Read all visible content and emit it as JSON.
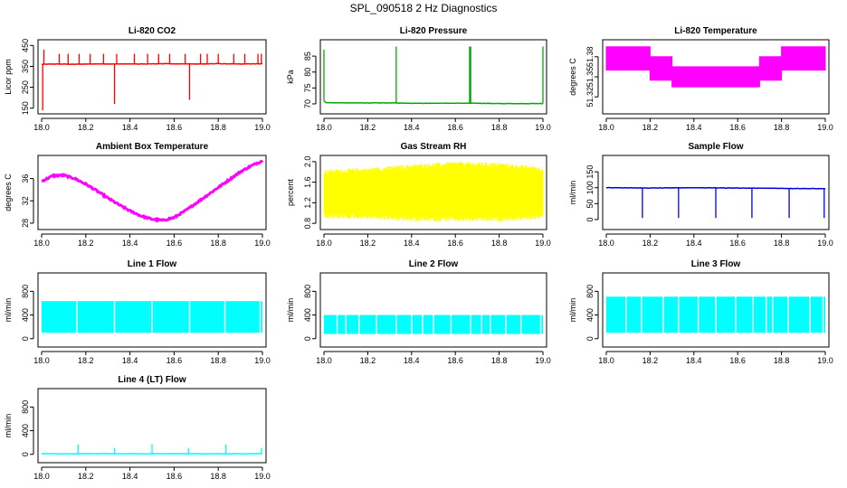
{
  "title": "SPL_090518  2 Hz Diagnostics",
  "chart_data": [
    {
      "type": "line",
      "title": "Li-820 CO2",
      "ylabel": "Licor ppm",
      "color": "#ff0000",
      "xlim": [
        18.0,
        19.0
      ],
      "ylim": [
        140,
        460
      ],
      "xticks": [
        "18.0",
        "18.2",
        "18.4",
        "18.6",
        "18.8",
        "19.0"
      ],
      "yticks": [
        "150",
        "250",
        "350",
        "450"
      ],
      "ytick_values": [
        150,
        250,
        350,
        450
      ],
      "pattern": "spiky",
      "series": [
        {
          "x": [
            18.0,
            18.01,
            18.05,
            18.1,
            18.15,
            18.2,
            18.25,
            18.3,
            18.33,
            18.35,
            18.4,
            18.45,
            18.5,
            18.55,
            18.6,
            18.65,
            18.67,
            18.7,
            18.75,
            18.8,
            18.85,
            18.9,
            18.95,
            19.0
          ],
          "values": [
            360,
            360,
            361,
            361,
            360,
            361,
            362,
            361,
            361,
            361,
            362,
            361,
            362,
            363,
            362,
            362,
            362,
            361,
            362,
            363,
            362,
            361,
            362,
            362
          ]
        }
      ],
      "spikes": [
        {
          "x": 18.005,
          "value": 140
        },
        {
          "x": 18.01,
          "value": 430
        },
        {
          "x": 18.08,
          "value": 410
        },
        {
          "x": 18.12,
          "value": 410
        },
        {
          "x": 18.17,
          "value": 410
        },
        {
          "x": 18.22,
          "value": 410
        },
        {
          "x": 18.28,
          "value": 410
        },
        {
          "x": 18.33,
          "value": 170
        },
        {
          "x": 18.34,
          "value": 410
        },
        {
          "x": 18.42,
          "value": 410
        },
        {
          "x": 18.48,
          "value": 410
        },
        {
          "x": 18.53,
          "value": 410
        },
        {
          "x": 18.58,
          "value": 410
        },
        {
          "x": 18.65,
          "value": 410
        },
        {
          "x": 18.67,
          "value": 190
        },
        {
          "x": 18.72,
          "value": 410
        },
        {
          "x": 18.75,
          "value": 410
        },
        {
          "x": 18.8,
          "value": 410
        },
        {
          "x": 18.87,
          "value": 410
        },
        {
          "x": 18.92,
          "value": 410
        },
        {
          "x": 18.98,
          "value": 410
        },
        {
          "x": 18.995,
          "value": 410
        }
      ]
    },
    {
      "type": "line",
      "title": "Li-820 Pressure",
      "ylabel": "kPa",
      "color": "#00aa00",
      "xlim": [
        18.0,
        19.0
      ],
      "ylim": [
        68,
        89
      ],
      "xticks": [
        "18.0",
        "18.2",
        "18.4",
        "18.6",
        "18.8",
        "19.0"
      ],
      "yticks": [
        "70",
        "75",
        "80",
        "85"
      ],
      "ytick_values": [
        70,
        75,
        80,
        85
      ],
      "pattern": "spiky",
      "series": [
        {
          "x": [
            18.0,
            18.01,
            18.1,
            18.2,
            18.3,
            18.4,
            18.5,
            18.6,
            18.7,
            18.8,
            18.9,
            19.0
          ],
          "values": [
            71,
            70.4,
            70.3,
            70.3,
            70.3,
            70.2,
            70.2,
            70.2,
            70.2,
            70.1,
            70.1,
            70.1
          ]
        }
      ],
      "spikes": [
        {
          "x": 18.0,
          "value": 87
        },
        {
          "x": 18.33,
          "value": 88
        },
        {
          "x": 18.665,
          "value": 88
        },
        {
          "x": 18.67,
          "value": 88
        },
        {
          "x": 19.0,
          "value": 88
        }
      ]
    },
    {
      "type": "area",
      "title": "Li-820 Temperature",
      "ylabel": "degrees C",
      "color": "#ff00ff",
      "xlim": [
        18.0,
        19.0
      ],
      "ylim": [
        51.3,
        51.4
      ],
      "xticks": [
        "18.0",
        "18.2",
        "18.4",
        "18.6",
        "18.8",
        "19.0"
      ],
      "yticks": [
        "51.32",
        "51.35",
        "51.38"
      ],
      "ytick_values": [
        51.32,
        51.35,
        51.38
      ],
      "pattern": "step-band",
      "series": [
        {
          "x": [
            18.0,
            18.2,
            18.2,
            18.3,
            18.3,
            18.7,
            18.7,
            18.8,
            18.8,
            19.0
          ],
          "low": [
            51.36,
            51.36,
            51.345,
            51.345,
            51.335,
            51.335,
            51.345,
            51.345,
            51.36,
            51.36
          ],
          "high": [
            51.395,
            51.395,
            51.38,
            51.38,
            51.365,
            51.365,
            51.38,
            51.38,
            51.395,
            51.395
          ]
        }
      ]
    },
    {
      "type": "line",
      "title": "Ambient Box Temperature",
      "ylabel": "degrees C",
      "color": "#ff00ff",
      "xlim": [
        18.0,
        19.0
      ],
      "ylim": [
        27.5,
        39.5
      ],
      "xticks": [
        "18.0",
        "18.2",
        "18.4",
        "18.6",
        "18.8",
        "19.0"
      ],
      "yticks": [
        "28",
        "32",
        "36"
      ],
      "ytick_values": [
        28,
        32,
        36
      ],
      "pattern": "thick",
      "series": [
        {
          "x": [
            18.0,
            18.05,
            18.1,
            18.15,
            18.2,
            18.25,
            18.3,
            18.35,
            18.4,
            18.45,
            18.5,
            18.55,
            18.6,
            18.65,
            18.7,
            18.75,
            18.8,
            18.85,
            18.9,
            18.95,
            19.0
          ],
          "values": [
            35.5,
            36.5,
            36.6,
            36.0,
            35.0,
            33.8,
            32.5,
            31.3,
            30.2,
            29.3,
            28.7,
            28.5,
            29.0,
            30.2,
            31.6,
            33.0,
            34.4,
            35.8,
            37.2,
            38.3,
            39.2
          ]
        }
      ]
    },
    {
      "type": "area",
      "title": "Gas Stream RH",
      "ylabel": "percent",
      "color": "#ffff00",
      "xlim": [
        18.0,
        19.0
      ],
      "ylim": [
        0.75,
        2.05
      ],
      "xticks": [
        "18.0",
        "18.2",
        "18.4",
        "18.6",
        "18.8",
        "19.0"
      ],
      "yticks": [
        "0.8",
        "1.2",
        "1.6",
        "2.0"
      ],
      "ytick_values": [
        0.8,
        1.2,
        1.6,
        2.0
      ],
      "pattern": "noise-band",
      "series": [
        {
          "x": [
            18.0,
            18.2,
            18.4,
            18.6,
            18.8,
            19.0
          ],
          "low": [
            1.0,
            1.0,
            0.95,
            0.95,
            0.95,
            1.0
          ],
          "high": [
            1.75,
            1.78,
            1.85,
            1.9,
            1.88,
            1.8
          ]
        }
      ]
    },
    {
      "type": "line",
      "title": "Sample Flow",
      "ylabel": "ml/min",
      "color": "#0000dd",
      "xlim": [
        18.0,
        19.0
      ],
      "ylim": [
        -20,
        190
      ],
      "xticks": [
        "18.0",
        "18.2",
        "18.4",
        "18.6",
        "18.8",
        "19.0"
      ],
      "yticks": [
        "0",
        "50",
        "100",
        "150"
      ],
      "ytick_values": [
        0,
        50,
        100,
        150
      ],
      "pattern": "spiky",
      "series": [
        {
          "x": [
            18.0,
            18.2,
            18.4,
            18.6,
            18.8,
            19.0
          ],
          "values": [
            100,
            99,
            100,
            99,
            98,
            97
          ]
        }
      ],
      "spikes": [
        {
          "x": 18.165,
          "value": 5
        },
        {
          "x": 18.33,
          "value": 5
        },
        {
          "x": 18.5,
          "value": 5
        },
        {
          "x": 18.665,
          "value": 5
        },
        {
          "x": 18.835,
          "value": 5
        },
        {
          "x": 18.995,
          "value": 5
        }
      ]
    },
    {
      "type": "area",
      "title": "Line 1 Flow",
      "ylabel": "ml/min",
      "color": "#00ffff",
      "xlim": [
        18.0,
        19.0
      ],
      "ylim": [
        -80,
        1050
      ],
      "xticks": [
        "18.0",
        "18.2",
        "18.4",
        "18.6",
        "18.8",
        "19.0"
      ],
      "yticks": [
        "0",
        "400",
        "800"
      ],
      "ytick_values": [
        0,
        400,
        800
      ],
      "pattern": "gapped-band",
      "series": [
        {
          "x": [
            18.0,
            19.0
          ],
          "low": [
            100,
            100
          ],
          "high": [
            640,
            630
          ]
        }
      ],
      "gaps": [
        18.16,
        18.33,
        18.5,
        18.67,
        18.83,
        18.99
      ]
    },
    {
      "type": "area",
      "title": "Line 2 Flow",
      "ylabel": "ml/min",
      "color": "#00ffff",
      "xlim": [
        18.0,
        19.0
      ],
      "ylim": [
        -80,
        1050
      ],
      "xticks": [
        "18.0",
        "18.2",
        "18.4",
        "18.6",
        "18.8",
        "19.0"
      ],
      "yticks": [
        "0",
        "400",
        "800"
      ],
      "ytick_values": [
        0,
        400,
        800
      ],
      "pattern": "gapped-band",
      "series": [
        {
          "x": [
            18.0,
            19.0
          ],
          "low": [
            80,
            80
          ],
          "high": [
            400,
            400
          ]
        }
      ],
      "gaps": [
        18.06,
        18.1,
        18.16,
        18.24,
        18.33,
        18.4,
        18.45,
        18.5,
        18.58,
        18.67,
        18.72,
        18.76,
        18.83,
        18.9,
        18.99
      ]
    },
    {
      "type": "area",
      "title": "Line 3 Flow",
      "ylabel": "ml/min",
      "color": "#00ffff",
      "xlim": [
        18.0,
        19.0
      ],
      "ylim": [
        -80,
        1050
      ],
      "xticks": [
        "18.0",
        "18.2",
        "18.4",
        "18.6",
        "18.8",
        "19.0"
      ],
      "yticks": [
        "0",
        "400",
        "800"
      ],
      "ytick_values": [
        0,
        400,
        800
      ],
      "pattern": "gapped-band",
      "series": [
        {
          "x": [
            18.0,
            19.0
          ],
          "low": [
            100,
            100
          ],
          "high": [
            720,
            700
          ]
        }
      ],
      "gaps": [
        18.09,
        18.16,
        18.26,
        18.33,
        18.42,
        18.5,
        18.59,
        18.67,
        18.73,
        18.76,
        18.83,
        18.93,
        18.99
      ]
    },
    {
      "type": "line",
      "title": "Line 4 (LT) Flow",
      "ylabel": "ml/min",
      "color": "#00ffff",
      "xlim": [
        18.0,
        19.0
      ],
      "ylim": [
        -80,
        1050
      ],
      "xticks": [
        "18.0",
        "18.2",
        "18.4",
        "18.6",
        "18.8",
        "19.0"
      ],
      "yticks": [
        "0",
        "400",
        "800"
      ],
      "ytick_values": [
        0,
        400,
        800
      ],
      "pattern": "spiky",
      "series": [
        {
          "x": [
            18.0,
            18.2,
            18.4,
            18.6,
            18.8,
            19.0
          ],
          "values": [
            10,
            10,
            10,
            10,
            10,
            10
          ]
        }
      ],
      "spikes": [
        {
          "x": 18.165,
          "value": 170
        },
        {
          "x": 18.33,
          "value": 110
        },
        {
          "x": 18.5,
          "value": 170
        },
        {
          "x": 18.665,
          "value": 110
        },
        {
          "x": 18.835,
          "value": 170
        },
        {
          "x": 18.995,
          "value": 110
        }
      ]
    }
  ]
}
